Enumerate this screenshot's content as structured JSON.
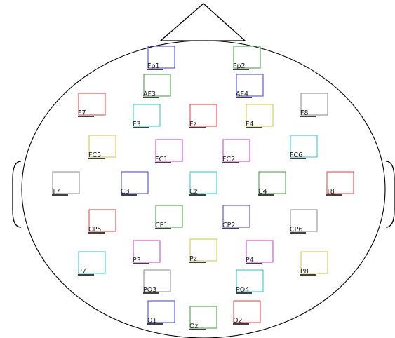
{
  "electrodes": [
    {
      "label": "Fp1",
      "color": "#3b3bd6"
    },
    {
      "label": "Fp2",
      "color": "#3c9a3c"
    },
    {
      "label": "AF3",
      "color": "#3c9a3c"
    },
    {
      "label": "AF4",
      "color": "#3b3bd6"
    },
    {
      "label": "F7",
      "color": "#e03c3c"
    },
    {
      "label": "F8",
      "color": "#8a8a8a"
    },
    {
      "label": "F3",
      "color": "#2ec4c4"
    },
    {
      "label": "Fz",
      "color": "#e03c3c"
    },
    {
      "label": "F4",
      "color": "#c8c840"
    },
    {
      "label": "FC5",
      "color": "#c8c840"
    },
    {
      "label": "FC1",
      "color": "#c040c0"
    },
    {
      "label": "FC2",
      "color": "#c040c0"
    },
    {
      "label": "FC6",
      "color": "#2ec4c4"
    },
    {
      "label": "T7",
      "color": "#8a8a8a"
    },
    {
      "label": "C3",
      "color": "#3b3bd6"
    },
    {
      "label": "Cz",
      "color": "#2ec4c4"
    },
    {
      "label": "C4",
      "color": "#3c9a3c"
    },
    {
      "label": "T8",
      "color": "#e03c3c"
    },
    {
      "label": "CP5",
      "color": "#e03c3c"
    },
    {
      "label": "CP1",
      "color": "#3c9a3c"
    },
    {
      "label": "CP2",
      "color": "#3b3bd6"
    },
    {
      "label": "CP6",
      "color": "#8a8a8a"
    },
    {
      "label": "P7",
      "color": "#2ec4c4"
    },
    {
      "label": "P3",
      "color": "#c040c0"
    },
    {
      "label": "Pz",
      "color": "#c8c840"
    },
    {
      "label": "P4",
      "color": "#c040c0"
    },
    {
      "label": "P8",
      "color": "#c8c840"
    },
    {
      "label": "PO3",
      "color": "#8a8a8a"
    },
    {
      "label": "PO4",
      "color": "#2ec4c4"
    },
    {
      "label": "O1",
      "color": "#3b3bd6"
    },
    {
      "label": "Oz",
      "color": "#3c9a3c"
    },
    {
      "label": "O2",
      "color": "#e03c3c"
    }
  ]
}
